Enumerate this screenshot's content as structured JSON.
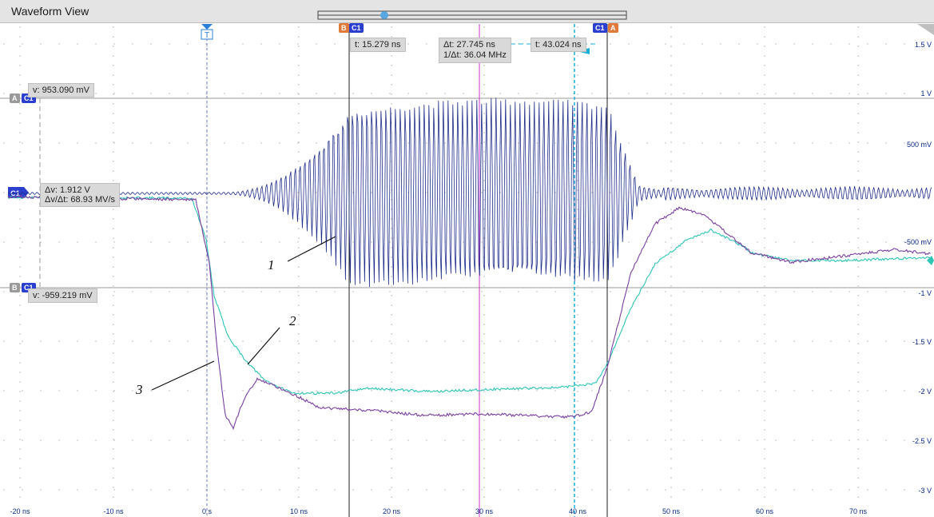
{
  "window": {
    "title": "Waveform View"
  },
  "cursor_readouts": {
    "t_b": "t: 15.279 ns",
    "delta_t": "Δt: 27.745 ns",
    "inv_delta_t": "1/Δt: 36.04 MHz",
    "t_a": "t: 43.024 ns",
    "v_a": "v: 953.090 mV",
    "delta_v": "Δv: 1.912 V",
    "dv_dt": "Δv/Δt: 68.93 MV/s",
    "v_b": "v: -959.219 mV"
  },
  "markers": {
    "trigger": "T",
    "cursor_a": "A",
    "cursor_b": "B",
    "channel": "C1"
  },
  "y_axis_labels": [
    "1.5 V",
    "1 V",
    "500 mV",
    "-500 mV",
    "-1 V",
    "-1.5 V",
    "-2 V",
    "-2.5 V",
    "-3 V"
  ],
  "x_axis_labels": [
    "-20 ns",
    "-10 ns",
    "0 s",
    "10 ns",
    "20 ns",
    "30 ns",
    "40 ns",
    "50 ns",
    "60 ns",
    "70 ns"
  ],
  "annotations": [
    "1",
    "2",
    "3"
  ],
  "colors": {
    "trace1": "#1f2e8a",
    "trace2": "#2ec4b6",
    "trace3": "#7b3fa0",
    "cursor_center": "#cc33cc",
    "cursor_a2": "#1ab0d8"
  }
}
